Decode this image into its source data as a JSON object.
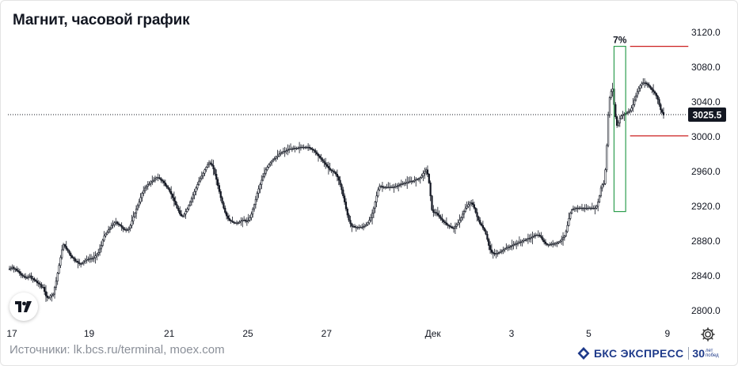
{
  "title": "Магнит, часовой график",
  "source": "Источники: lk.bcs.ru/terminal, moex.com",
  "brand": {
    "name": "БКС ЭКСПРЕСС",
    "years": "30",
    "years_sub": "лет побед"
  },
  "icons": {
    "tv_logo": "tradingview-logo-icon",
    "settings": "gear-icon",
    "brand": "bcs-logo-icon"
  },
  "colors": {
    "candles": "#131722",
    "annotation_box": "#2e9e4f",
    "annotation_lines": "#cc1f1f",
    "price_label_bg": "#131722"
  },
  "chart_data": {
    "type": "candlestick",
    "title": "Магнит, часовой график",
    "ylim": [
      2790,
      3130
    ],
    "y_ticks": [
      "3120.0",
      "3080.0",
      "3040.0",
      "3000.0",
      "2960.0",
      "2920.0",
      "2880.0",
      "2840.0",
      "2800.0"
    ],
    "y_tick_values": [
      3120,
      3080,
      3040,
      3000,
      2960,
      2920,
      2880,
      2840,
      2800
    ],
    "x_ticks": [
      "17",
      "19",
      "21",
      "25",
      "27",
      "Дек",
      "3",
      "5",
      "9"
    ],
    "x_tick_index": [
      0,
      53,
      108,
      162,
      216,
      289,
      343,
      396,
      450
    ],
    "last_price": 3025.5,
    "last_price_label": "3025.5",
    "annotation": {
      "label": "7%",
      "box_from_index": 415,
      "box_to_index": 423,
      "box_low": 2914,
      "box_high": 3104,
      "upper_level": 3104,
      "lower_level": 3001,
      "levels_from_index": 426,
      "levels_to_index": 466
    },
    "series": [
      {
        "values": [
          2848,
          2849,
          2850,
          2848,
          2848,
          2846,
          2845,
          2843,
          2841,
          2840,
          2839,
          2838,
          2838,
          2839,
          2840,
          2837,
          2837,
          2835,
          2834,
          2832,
          2831,
          2830,
          2827,
          2827,
          2822,
          2817,
          2815,
          2815,
          2817,
          2818,
          2819,
          2827,
          2834,
          2843,
          2852,
          2861,
          2870,
          2876,
          2874,
          2871,
          2869,
          2866,
          2863,
          2861,
          2860,
          2857,
          2857,
          2855,
          2854,
          2854,
          2855,
          2857,
          2858,
          2859,
          2859,
          2860,
          2860,
          2860,
          2861,
          2863,
          2865,
          2867,
          2871,
          2875,
          2881,
          2886,
          2888,
          2890,
          2893,
          2895,
          2898,
          2899,
          2901,
          2902,
          2900,
          2899,
          2898,
          2896,
          2894,
          2893,
          2893,
          2893,
          2895,
          2898,
          2903,
          2908,
          2912,
          2917,
          2921,
          2925,
          2930,
          2935,
          2938,
          2941,
          2943,
          2945,
          2946,
          2948,
          2949,
          2950,
          2952,
          2953,
          2953,
          2952,
          2950,
          2949,
          2947,
          2944,
          2942,
          2940,
          2937,
          2934,
          2930,
          2926,
          2922,
          2918,
          2915,
          2911,
          2909,
          2909,
          2911,
          2914,
          2917,
          2921,
          2925,
          2929,
          2933,
          2937,
          2941,
          2945,
          2949,
          2952,
          2955,
          2958,
          2962,
          2965,
          2968,
          2970,
          2969,
          2967,
          2963,
          2957,
          2951,
          2944,
          2937,
          2930,
          2924,
          2918,
          2913,
          2909,
          2906,
          2904,
          2903,
          2902,
          2901,
          2901,
          2901,
          2901,
          2902,
          2903,
          2904,
          2904,
          2903,
          2903,
          2904,
          2907,
          2911,
          2917,
          2922,
          2928,
          2935,
          2940,
          2945,
          2950,
          2954,
          2958,
          2962,
          2965,
          2968,
          2970,
          2972,
          2974,
          2975,
          2977,
          2978,
          2980,
          2981,
          2982,
          2983,
          2983,
          2984,
          2985,
          2986,
          2986,
          2986,
          2987,
          2987,
          2987,
          2987,
          2988,
          2988,
          2988,
          2988,
          2988,
          2988,
          2988,
          2987,
          2986,
          2985,
          2984,
          2982,
          2980,
          2978,
          2976,
          2974,
          2972,
          2970,
          2968,
          2966,
          2964,
          2962,
          2961,
          2960,
          2959,
          2957,
          2954,
          2950,
          2945,
          2939,
          2932,
          2925,
          2917,
          2910,
          2904,
          2900,
          2897,
          2897,
          2896,
          2896,
          2896,
          2896,
          2896,
          2896,
          2897,
          2898,
          2899,
          2901,
          2904,
          2907,
          2912,
          2918,
          2925,
          2932,
          2939,
          2943,
          2943,
          2942,
          2942,
          2942,
          2942,
          2942,
          2942,
          2942,
          2942,
          2942,
          2943,
          2943,
          2944,
          2945,
          2946,
          2946,
          2947,
          2947,
          2948,
          2948,
          2949,
          2949,
          2949,
          2950,
          2951,
          2951,
          2952,
          2953,
          2955,
          2958,
          2960,
          2962,
          2957,
          2947,
          2932,
          2916,
          2913,
          2913,
          2912,
          2910,
          2908,
          2906,
          2904,
          2902,
          2901,
          2899,
          2898,
          2897,
          2896,
          2895,
          2895,
          2897,
          2899,
          2901,
          2904,
          2907,
          2911,
          2914,
          2918,
          2920,
          2922,
          2924,
          2924,
          2922,
          2918,
          2913,
          2908,
          2904,
          2900,
          2898,
          2895,
          2892,
          2888,
          2882,
          2875,
          2870,
          2867,
          2866,
          2865,
          2866,
          2866,
          2867,
          2868,
          2869,
          2870,
          2871,
          2872,
          2873,
          2873,
          2874,
          2875,
          2876,
          2877,
          2877,
          2878,
          2879,
          2879,
          2880,
          2881,
          2881,
          2882,
          2883,
          2883,
          2884,
          2885,
          2886,
          2887,
          2887,
          2887,
          2886,
          2884,
          2881,
          2879,
          2877,
          2876,
          2876,
          2876,
          2877,
          2877,
          2877,
          2878,
          2878,
          2879,
          2880,
          2882,
          2884,
          2886,
          2891,
          2898,
          2906,
          2912,
          2916,
          2917,
          2918,
          2918,
          2918,
          2918,
          2918,
          2918,
          2918,
          2918,
          2918,
          2918,
          2918,
          2918,
          2918,
          2918,
          2918,
          2920,
          2925,
          2932,
          2941,
          2945,
          2946,
          2962,
          2990,
          3025,
          3045,
          3052,
          3055,
          3037,
          3023,
          3013,
          3016,
          3021,
          3024,
          3025,
          3026,
          3027,
          3028,
          3029,
          3030,
          3033,
          3037,
          3042,
          3047,
          3052,
          3056,
          3059,
          3061,
          3062,
          3062,
          3061,
          3060,
          3058,
          3056,
          3054,
          3052,
          3050,
          3047,
          3043,
          3037,
          3031,
          3028,
          3025
        ]
      }
    ]
  }
}
